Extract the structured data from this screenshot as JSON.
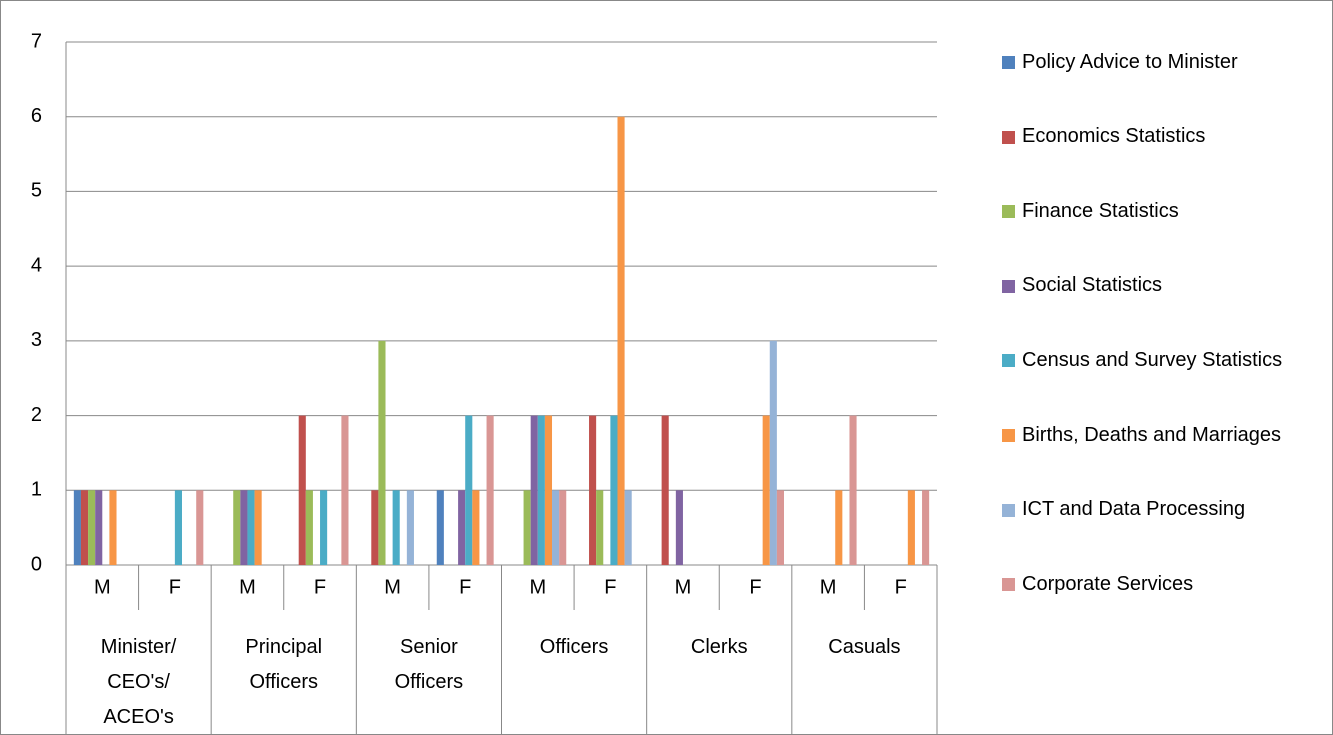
{
  "chart_data": {
    "type": "bar",
    "categories": [
      "M",
      "F",
      "M",
      "F",
      "M",
      "F",
      "M",
      "F",
      "M",
      "F",
      "M",
      "F"
    ],
    "groups": [
      "Minister/ CEO's/ ACEO's",
      "Principal Officers",
      "Senior Officers",
      "Officers",
      "Clerks",
      "Casuals"
    ],
    "series": [
      {
        "name": "Policy Advice to Minister",
        "color": "#4f81bd",
        "values": [
          1,
          0,
          0,
          0,
          0,
          1,
          0,
          0,
          0,
          0,
          0,
          0
        ]
      },
      {
        "name": "Economics Statistics",
        "color": "#c0504d",
        "values": [
          1,
          0,
          0,
          2,
          1,
          0,
          0,
          2,
          2,
          0,
          0,
          0
        ]
      },
      {
        "name": "Finance Statistics",
        "color": "#9bbb59",
        "values": [
          1,
          0,
          1,
          1,
          3,
          0,
          1,
          1,
          0,
          0,
          0,
          0
        ]
      },
      {
        "name": "Social Statistics",
        "color": "#8064a2",
        "values": [
          1,
          0,
          1,
          0,
          0,
          1,
          2,
          0,
          1,
          0,
          0,
          0
        ]
      },
      {
        "name": "Census and Survey Statistics",
        "color": "#4bacc6",
        "values": [
          0,
          1,
          1,
          1,
          1,
          2,
          2,
          2,
          0,
          0,
          0,
          0
        ]
      },
      {
        "name": "Births, Deaths and Marriages",
        "color": "#f79646",
        "values": [
          1,
          0,
          1,
          0,
          0,
          1,
          2,
          6,
          0,
          2,
          1,
          1
        ]
      },
      {
        "name": "ICT and Data Processing",
        "color": "#95b3d7",
        "values": [
          0,
          0,
          0,
          0,
          1,
          0,
          1,
          1,
          0,
          3,
          0,
          0
        ]
      },
      {
        "name": "Corporate Services",
        "color": "#d99694",
        "values": [
          0,
          1,
          0,
          2,
          0,
          2,
          1,
          0,
          0,
          1,
          2,
          1
        ]
      }
    ],
    "ylim": [
      0,
      7
    ],
    "yticks": [
      0,
      1,
      2,
      3,
      4,
      5,
      6,
      7
    ],
    "grid": true,
    "legend": "right"
  }
}
